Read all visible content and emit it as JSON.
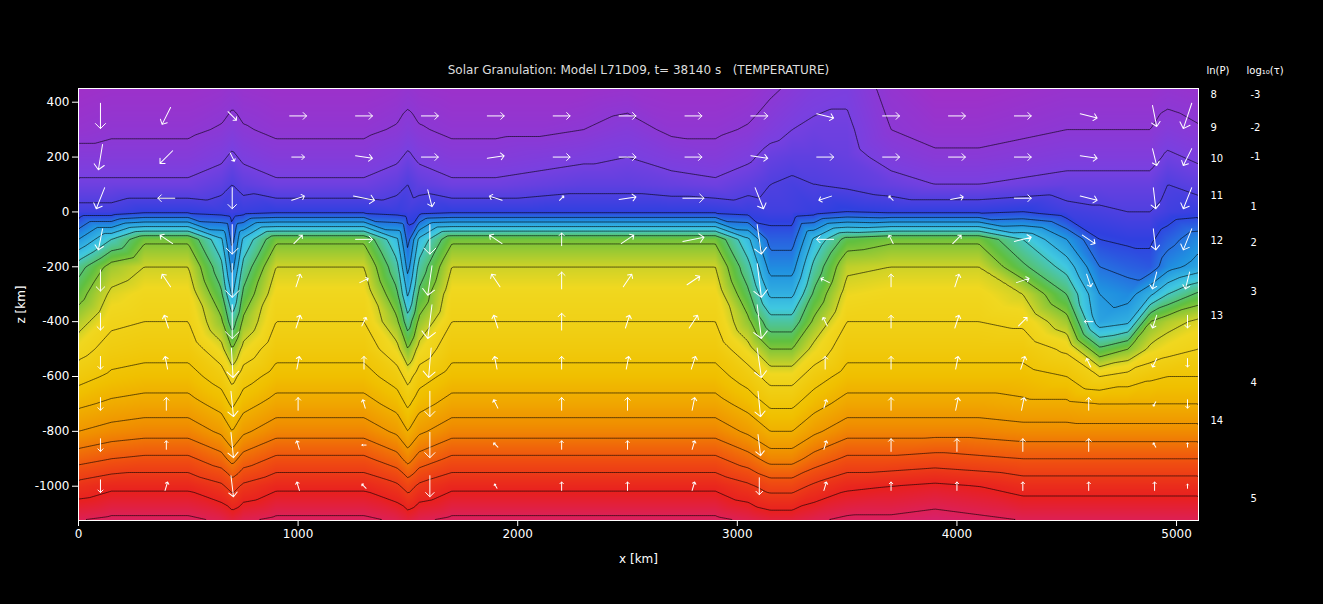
{
  "chart_data": {
    "type": "heatmap",
    "title": "Solar Granulation: Model L71D09, t= 38140 s   (TEMPERATURE)",
    "x_label": "x [km]",
    "y_label": "z [km]",
    "xlim": [
      0,
      5100
    ],
    "ylim": [
      -1125,
      450
    ],
    "xticks": [
      0,
      1000,
      2000,
      3000,
      4000,
      5000
    ],
    "yticks": [
      -1000,
      -800,
      -600,
      -400,
      -200,
      0,
      200,
      400
    ],
    "temperature_range": [
      4000,
      14500
    ],
    "temperature": {
      "x": [
        0,
        150,
        300,
        500,
        650,
        700,
        750,
        900,
        1100,
        1300,
        1450,
        1500,
        1550,
        1700,
        1900,
        2100,
        2300,
        2500,
        2700,
        2900,
        3050,
        3150,
        3250,
        3350,
        3500,
        3700,
        3900,
        4100,
        4300,
        4500,
        4650,
        4780,
        4880,
        4960,
        5100
      ],
      "z": [
        450,
        300,
        200,
        100,
        0,
        -100,
        -200,
        -300,
        -400,
        -500,
        -600,
        -700,
        -800,
        -900,
        -1000,
        -1125
      ],
      "values": [
        [
          4000,
          4100,
          4100,
          4100,
          4200,
          4300,
          4200,
          4100,
          4100,
          4100,
          4200,
          4300,
          4200,
          4100,
          4100,
          4100,
          4100,
          4200,
          4100,
          4100,
          4200,
          4400,
          4600,
          4800,
          4900,
          4300,
          4000,
          4000,
          4100,
          4200,
          4200,
          4200,
          4200,
          4300,
          4200
        ],
        [
          4300,
          4400,
          4400,
          4400,
          4550,
          4700,
          4550,
          4400,
          4400,
          4400,
          4550,
          4700,
          4550,
          4400,
          4400,
          4400,
          4500,
          4700,
          4400,
          4400,
          4550,
          4800,
          5000,
          5100,
          5100,
          4500,
          4300,
          4300,
          4400,
          4500,
          4500,
          4500,
          4500,
          4700,
          4550
        ],
        [
          4700,
          4700,
          4700,
          4700,
          4900,
          5100,
          4900,
          4700,
          4700,
          4700,
          4900,
          5100,
          4900,
          4700,
          4700,
          4800,
          4900,
          5000,
          4800,
          4700,
          4900,
          5200,
          5300,
          5300,
          5200,
          4800,
          4600,
          4600,
          4700,
          4800,
          4800,
          4800,
          4800,
          5100,
          4900
        ],
        [
          5100,
          5100,
          5100,
          5100,
          5300,
          5500,
          5300,
          5100,
          5100,
          5100,
          5300,
          5500,
          5300,
          5100,
          5100,
          5200,
          5300,
          5300,
          5200,
          5100,
          5300,
          5500,
          5600,
          5500,
          5400,
          5200,
          5000,
          5000,
          5100,
          5200,
          5200,
          5200,
          5200,
          5500,
          5300
        ],
        [
          5700,
          5700,
          5900,
          5900,
          5800,
          5700,
          5800,
          5900,
          5900,
          5900,
          5800,
          5700,
          5800,
          5900,
          5900,
          5900,
          5900,
          5900,
          5900,
          5900,
          5800,
          5700,
          5700,
          5800,
          6000,
          5900,
          5900,
          5900,
          6000,
          5700,
          5600,
          5500,
          5500,
          5700,
          5800
        ],
        [
          7000,
          8000,
          8900,
          8900,
          7600,
          6300,
          7600,
          8900,
          8900,
          8900,
          7600,
          6300,
          7600,
          8900,
          8900,
          8900,
          8900,
          8900,
          8900,
          8900,
          7600,
          6300,
          6300,
          7600,
          8700,
          8900,
          8900,
          8900,
          8000,
          7000,
          6000,
          5900,
          5900,
          6300,
          6800
        ],
        [
          8300,
          9200,
          9500,
          9500,
          8150,
          6800,
          8150,
          9500,
          9500,
          9500,
          8150,
          6800,
          8150,
          9500,
          9500,
          9500,
          9500,
          9500,
          9500,
          9500,
          8150,
          6800,
          6800,
          8150,
          9400,
          9500,
          9500,
          9500,
          8600,
          7800,
          6500,
          6300,
          6200,
          6800,
          7200
        ],
        [
          8800,
          9600,
          9800,
          9800,
          8600,
          7400,
          8600,
          9800,
          9800,
          9800,
          8600,
          7400,
          8600,
          9800,
          9800,
          9800,
          9800,
          9800,
          9800,
          9800,
          8600,
          7400,
          7400,
          8600,
          9700,
          9800,
          9800,
          9800,
          9500,
          8500,
          7000,
          6800,
          7400,
          8000,
          8600
        ],
        [
          9300,
          9900,
          10000,
          10000,
          9100,
          8200,
          9100,
          10000,
          10000,
          10000,
          9100,
          8200,
          9100,
          10000,
          10000,
          10000,
          10000,
          10000,
          10000,
          10000,
          9100,
          8200,
          8200,
          9100,
          10000,
          10000,
          10000,
          10000,
          9900,
          9200,
          7200,
          7400,
          9000,
          9300,
          9600
        ],
        [
          9800,
          10200,
          10300,
          10300,
          9650,
          9000,
          9650,
          10300,
          10300,
          10300,
          9650,
          9000,
          9650,
          10300,
          10300,
          10300,
          10300,
          10300,
          10300,
          10300,
          9650,
          9000,
          9000,
          9650,
          10300,
          10300,
          10300,
          10300,
          10300,
          9900,
          8600,
          9000,
          9600,
          9800,
          10000
        ],
        [
          10300,
          10600,
          10700,
          10700,
          10250,
          9800,
          10250,
          10700,
          10700,
          10700,
          10250,
          9800,
          10250,
          10700,
          10700,
          10700,
          10700,
          10700,
          10700,
          10700,
          10250,
          9800,
          9800,
          10250,
          10700,
          10700,
          10700,
          10700,
          10700,
          10500,
          10000,
          10200,
          10400,
          10500,
          10500
        ],
        [
          10900,
          11100,
          11200,
          11200,
          10800,
          10400,
          10800,
          11200,
          11200,
          11200,
          10800,
          10400,
          10800,
          11200,
          11200,
          11200,
          11200,
          11200,
          11200,
          11200,
          10800,
          10400,
          10400,
          10800,
          11200,
          11200,
          11200,
          11200,
          11100,
          11100,
          11000,
          11000,
          11000,
          11000,
          11000
        ],
        [
          11500,
          11700,
          11800,
          11800,
          11400,
          11000,
          11400,
          11800,
          11800,
          11800,
          11400,
          11000,
          11400,
          11800,
          11800,
          11800,
          11800,
          11800,
          11800,
          11800,
          11400,
          11000,
          11000,
          11400,
          11800,
          11800,
          11800,
          11800,
          11700,
          11700,
          11700,
          11700,
          11700,
          11700,
          11700
        ],
        [
          12300,
          12500,
          12600,
          12600,
          12200,
          11800,
          12200,
          12600,
          12600,
          12600,
          12200,
          11800,
          12200,
          12600,
          12600,
          12600,
          12600,
          12600,
          12600,
          12600,
          12200,
          11800,
          11800,
          12200,
          12600,
          12600,
          12700,
          12600,
          12500,
          12500,
          12500,
          12500,
          12500,
          12500,
          12500
        ],
        [
          13200,
          13400,
          13400,
          13400,
          13100,
          12800,
          13100,
          13400,
          13400,
          13400,
          13100,
          12800,
          13100,
          13400,
          13400,
          13400,
          13400,
          13400,
          13400,
          13400,
          13100,
          12800,
          12800,
          13100,
          13400,
          13500,
          13600,
          13500,
          13300,
          13300,
          13300,
          13300,
          13300,
          13300,
          13300
        ],
        [
          14000,
          14100,
          14100,
          14100,
          13950,
          13800,
          13950,
          14100,
          14100,
          14100,
          13950,
          13800,
          13950,
          14100,
          14100,
          14100,
          14100,
          14100,
          14100,
          14100,
          13950,
          13800,
          13800,
          13950,
          14100,
          14100,
          14200,
          14100,
          14000,
          14000,
          14000,
          14000,
          14000,
          14000,
          14000
        ]
      ]
    },
    "velocity": {
      "x": [
        100,
        400,
        700,
        1000,
        1300,
        1600,
        1900,
        2200,
        2500,
        2800,
        3100,
        3400,
        3700,
        4000,
        4300,
        4600,
        4900,
        5050
      ],
      "z": [
        350,
        200,
        50,
        -100,
        -250,
        -400,
        -550,
        -700,
        -850,
        -1000
      ],
      "vx": [
        [
          0,
          -1,
          1,
          2,
          2,
          2,
          2,
          2,
          2,
          2,
          2,
          2,
          2,
          2,
          2,
          2,
          0.5,
          -1
        ],
        [
          -0.5,
          -1.5,
          0.5,
          1.5,
          2,
          2,
          2,
          2,
          2,
          2,
          2,
          2,
          2,
          2,
          2,
          2,
          0.5,
          -1
        ],
        [
          -1,
          -2,
          0,
          1.5,
          2.5,
          0.5,
          -1.5,
          0.5,
          2,
          2.5,
          1,
          -1.5,
          -0.5,
          1.5,
          2,
          2,
          0.3,
          -1
        ],
        [
          -0.5,
          -1.5,
          0,
          1,
          2,
          0,
          -1.5,
          0,
          1.5,
          2.5,
          0.5,
          -2,
          -0.5,
          1,
          2,
          1.5,
          0.3,
          -1
        ],
        [
          0,
          -1,
          0,
          0.5,
          1,
          -0.5,
          -1,
          0,
          1,
          1.5,
          0.5,
          -1,
          0,
          0.5,
          1.5,
          0.5,
          -0.5,
          -0.5
        ],
        [
          0,
          -0.5,
          0,
          0.5,
          0.5,
          -0.5,
          -0.5,
          0,
          0.5,
          1,
          0.5,
          -0.5,
          0,
          0.5,
          1,
          -1,
          -0.5,
          0
        ],
        [
          0,
          -0.3,
          0.2,
          0.3,
          0,
          -0.3,
          -0.3,
          0,
          0.3,
          0.5,
          0.5,
          0,
          0,
          0.3,
          0.5,
          -0.5,
          -0.5,
          0
        ],
        [
          0,
          0,
          0.3,
          0,
          -0.3,
          0,
          -0.5,
          0,
          0,
          0.3,
          0.3,
          0.3,
          0,
          0.3,
          0.3,
          0,
          -0.3,
          0
        ],
        [
          0,
          0,
          0.3,
          -0.3,
          -0.5,
          0,
          -0.5,
          0,
          0,
          0.3,
          0.3,
          0.3,
          0,
          0,
          0,
          0,
          -0.3,
          0
        ],
        [
          0,
          0.3,
          0.3,
          -0.3,
          -0.5,
          0,
          -0.3,
          0,
          0,
          0.3,
          0,
          0.3,
          0,
          0,
          0,
          0,
          0,
          0
        ]
      ],
      "vz": [
        [
          -3,
          -2,
          -1,
          0,
          0,
          0,
          0,
          0,
          0,
          0,
          0,
          -0.5,
          0,
          0,
          0,
          -0.5,
          -2.5,
          -3
        ],
        [
          -3,
          -1.5,
          -1,
          0,
          -0.3,
          0,
          0.3,
          0,
          0,
          0,
          -0.3,
          0,
          0,
          0,
          0,
          -0.3,
          -2,
          -2
        ],
        [
          -2.5,
          0,
          -2.5,
          0.5,
          -0.5,
          -2,
          0.5,
          0.5,
          0.3,
          0,
          -2.5,
          -0.5,
          0.5,
          0.3,
          0,
          -0.5,
          -2.5,
          -2.5
        ],
        [
          -2.5,
          1,
          -3.5,
          1,
          0,
          -3.5,
          1,
          1.5,
          1,
          0.5,
          -3.5,
          0,
          1,
          1,
          0.5,
          -1,
          -2.5,
          -2.5
        ],
        [
          -2.5,
          1.5,
          -4,
          1.5,
          0.5,
          -3.5,
          1.5,
          2,
          1.5,
          1,
          -4,
          0.5,
          1.5,
          1.5,
          0.5,
          -1.5,
          -2,
          -2
        ],
        [
          -2,
          1.5,
          -4,
          1.5,
          1,
          -4,
          1.5,
          2,
          1.5,
          1.5,
          -4,
          1,
          1.5,
          1.5,
          1,
          0,
          -1.5,
          -1.5
        ],
        [
          -1.5,
          1.5,
          -3.5,
          1.5,
          1.5,
          -3.5,
          1.5,
          1.5,
          1.5,
          1.5,
          -3.5,
          1.5,
          1.5,
          1.5,
          1.5,
          1,
          -1,
          -1
        ],
        [
          -1.5,
          1.5,
          -3,
          1.5,
          1,
          -3,
          1,
          1.5,
          1.5,
          1.5,
          -3,
          1,
          1.5,
          1.5,
          1.5,
          1.5,
          -0.5,
          -1
        ],
        [
          -1.5,
          1,
          -3,
          1,
          0,
          -3,
          0.5,
          1,
          1,
          1,
          -2.5,
          1,
          1.5,
          1.5,
          1.5,
          1.5,
          0.5,
          0.5
        ],
        [
          -1.5,
          1,
          -2.5,
          1,
          0.5,
          -2.5,
          0.5,
          1,
          1,
          1,
          -2,
          1,
          1,
          1,
          1,
          1,
          1,
          0.5
        ]
      ]
    },
    "right_axes": [
      {
        "label": "ln(P)",
        "ticks": [
          {
            "value": 426,
            "label": "8"
          },
          {
            "value": 305,
            "label": "9"
          },
          {
            "value": 194,
            "label": "10"
          },
          {
            "value": 59,
            "label": "11"
          },
          {
            "value": -106,
            "label": "12"
          },
          {
            "value": -378,
            "label": "13"
          },
          {
            "value": -760,
            "label": "14"
          }
        ]
      },
      {
        "label": "log₁₀(τ)",
        "ticks": [
          {
            "value": 426,
            "label": "-3"
          },
          {
            "value": 305,
            "label": "-2"
          },
          {
            "value": 202,
            "label": "-1"
          },
          {
            "value": 18,
            "label": "1"
          },
          {
            "value": -114,
            "label": "2"
          },
          {
            "value": -290,
            "label": "3"
          },
          {
            "value": -624,
            "label": "4"
          },
          {
            "value": -1046,
            "label": "5"
          }
        ]
      }
    ]
  }
}
